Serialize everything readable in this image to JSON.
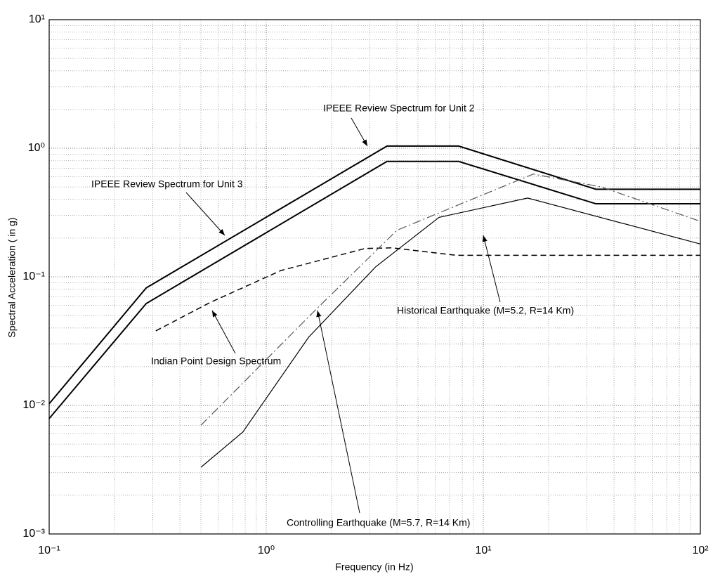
{
  "chart_data": {
    "type": "line",
    "xlabel": "Frequency (in Hz)",
    "ylabel": "Spectral Acceleration ( in g)",
    "xscale": "log",
    "yscale": "log",
    "grid": true,
    "xlim": [
      0.1,
      100
    ],
    "ylim": [
      0.001,
      10
    ],
    "xticks": [
      {
        "value": 0.1,
        "label": "10⁻¹"
      },
      {
        "value": 1,
        "label": "10⁰"
      },
      {
        "value": 10,
        "label": "10¹"
      },
      {
        "value": 100,
        "label": "10²"
      }
    ],
    "yticks": [
      {
        "value": 0.001,
        "label": "10⁻³"
      },
      {
        "value": 0.01,
        "label": "10⁻²"
      },
      {
        "value": 0.1,
        "label": "10⁻¹"
      },
      {
        "value": 1,
        "label": "10⁰"
      },
      {
        "value": 10,
        "label": "10¹"
      }
    ],
    "series": [
      {
        "color": "#000000",
        "dash": "solid",
        "width": 2,
        "x": [
          0.1,
          0.28,
          3.6,
          7.7,
          33,
          100
        ],
        "values": [
          0.0103,
          0.082,
          1.04,
          1.04,
          0.48,
          0.48
        ]
      },
      {
        "color": "#000000",
        "dash": "solid",
        "width": 2,
        "x": [
          0.1,
          0.28,
          3.6,
          7.7,
          33,
          100
        ],
        "values": [
          0.0079,
          0.062,
          0.79,
          0.79,
          0.37,
          0.37
        ]
      },
      {
        "color": "#000000",
        "dash": "dashed",
        "width": 1.5,
        "x": [
          0.31,
          0.55,
          1.17,
          2.85,
          3.8,
          7.5,
          100
        ],
        "values": [
          0.038,
          0.063,
          0.112,
          0.166,
          0.168,
          0.147,
          0.147
        ]
      },
      {
        "color": "#555555",
        "dash": "dashdot",
        "width": 1.2,
        "x": [
          0.5,
          1.7,
          4,
          7.6,
          17,
          35,
          100
        ],
        "values": [
          0.007,
          0.056,
          0.23,
          0.36,
          0.63,
          0.5,
          0.27
        ]
      },
      {
        "color": "#000000",
        "dash": "solid",
        "width": 1.2,
        "x": [
          0.5,
          0.78,
          1.57,
          3.2,
          6.25,
          16,
          100
        ],
        "values": [
          0.0033,
          0.0062,
          0.034,
          0.12,
          0.29,
          0.41,
          0.18
        ]
      }
    ],
    "annotations": [
      {
        "text": "IPEEE Review Spectrum for Unit 2"
      },
      {
        "text": "IPEEE Review Spectrum for Unit 3"
      },
      {
        "text": "Indian Point Design Spectrum"
      },
      {
        "text": "Historical Earthquake (M=5.2, R=14 Km)"
      },
      {
        "text": "Controlling Earthquake (M=5.7, R=14 Km)"
      }
    ]
  }
}
